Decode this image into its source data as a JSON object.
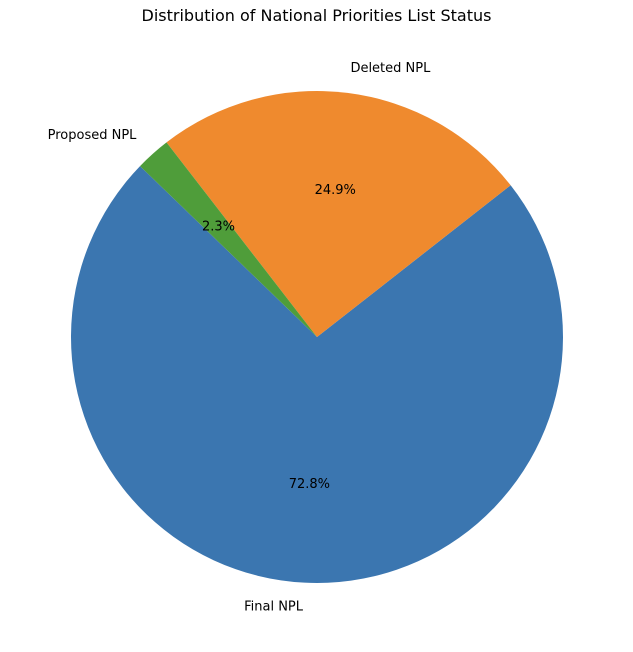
{
  "chart_data": {
    "type": "pie",
    "title": "Distribution of National Priorities List Status",
    "slices": [
      {
        "label": "Final NPL",
        "value": 72.8,
        "pct_label": "72.8%",
        "color": "#3b76b0"
      },
      {
        "label": "Deleted NPL",
        "value": 24.9,
        "pct_label": "24.9%",
        "color": "#ef8a2e"
      },
      {
        "label": "Proposed NPL",
        "value": 2.3,
        "pct_label": "2.3%",
        "color": "#4f9d3a"
      }
    ],
    "start_angle_deg": 136,
    "direction": "counterclockwise",
    "legend": "none"
  }
}
